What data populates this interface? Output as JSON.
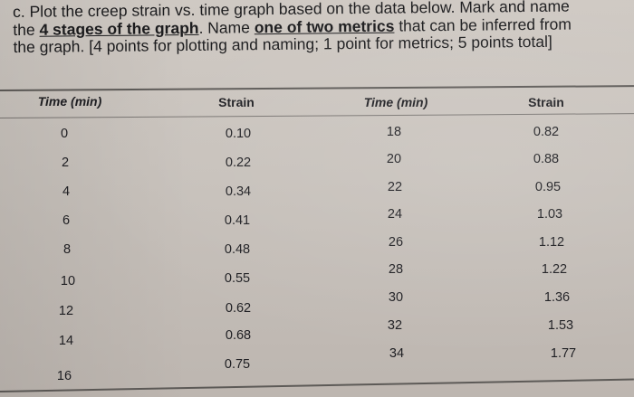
{
  "question": {
    "line1": "c. Plot the creep strain vs. time graph based on the data below. Mark and name",
    "line2_pre": "the ",
    "line2_ul1": "4 stages of the graph",
    "line2_mid": ". Name ",
    "line2_ul2": "one of two metrics",
    "line2_post": " that can be inferred from",
    "line3": "the graph. [4 points for plotting and naming; 1 point for metrics; 5 points total]"
  },
  "table": {
    "headers": [
      "Time (min)",
      "Strain",
      "Time (min)",
      "Strain"
    ],
    "left_time": [
      "0",
      "2",
      "4",
      "6",
      "8",
      "10",
      "12",
      "14",
      "16"
    ],
    "left_strain": [
      "0.10",
      "0.22",
      "0.34",
      "0.41",
      "0.48",
      "0.55",
      "0.62",
      "0.68",
      "0.75"
    ],
    "right_time": [
      "18",
      "20",
      "22",
      "24",
      "26",
      "28",
      "30",
      "32",
      "34"
    ],
    "right_strain": [
      "0.82",
      "0.88",
      "0.95",
      "1.03",
      "1.12",
      "1.22",
      "1.36",
      "1.53",
      "1.77"
    ]
  }
}
